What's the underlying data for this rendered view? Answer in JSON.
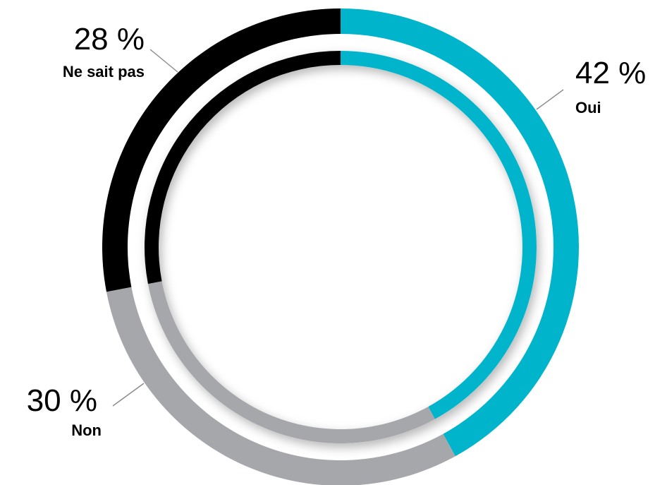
{
  "chart_data": {
    "type": "pie",
    "variant": "double-ring donut",
    "title": "",
    "legend": "none",
    "slices": [
      {
        "key": "oui",
        "name": "Oui",
        "value": 42,
        "label": "42 %",
        "color": "#00b4cc"
      },
      {
        "key": "non",
        "name": "Non",
        "value": 30,
        "label": "30 %",
        "color": "#a6a7ab"
      },
      {
        "key": "nesaitpas",
        "name": "Ne sait pas",
        "value": 28,
        "label": "28 %",
        "color": "#000000"
      }
    ]
  }
}
